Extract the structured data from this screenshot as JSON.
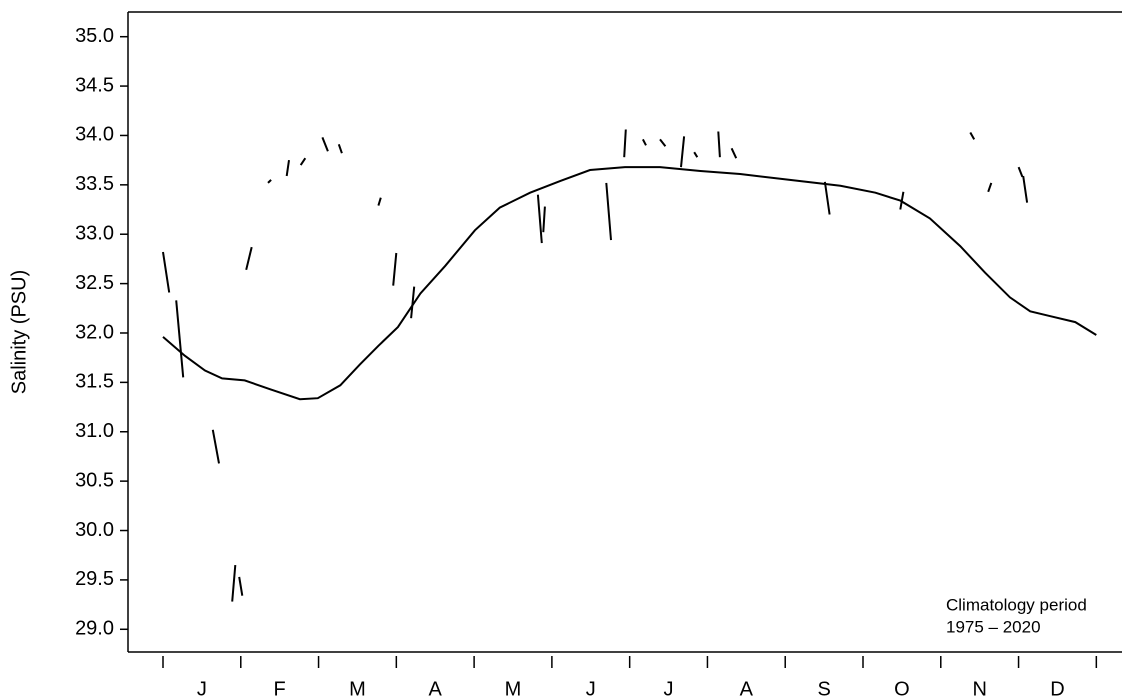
{
  "chart_data": {
    "type": "line",
    "y_label": "Salinity (PSU)",
    "annotations": [
      "Climatology period",
      "1975 – 2020"
    ],
    "categories": [
      "J",
      "F",
      "M",
      "A",
      "M",
      "J",
      "J",
      "A",
      "S",
      "O",
      "N",
      "D"
    ],
    "xlim": [
      -0.45,
      12.33
    ],
    "ylim": [
      28.77,
      35.25
    ],
    "yticks": [
      {
        "value": 29,
        "label": "29.0"
      },
      {
        "value": 29.5,
        "label": "29.5"
      },
      {
        "value": 30,
        "label": "30.0"
      },
      {
        "value": 30.5,
        "label": "30.5"
      },
      {
        "value": 31,
        "label": "31.0"
      },
      {
        "value": 31.5,
        "label": "31.5"
      },
      {
        "value": 32,
        "label": "32.0"
      },
      {
        "value": 32.5,
        "label": "32.5"
      },
      {
        "value": 33,
        "label": "33.0"
      },
      {
        "value": 33.5,
        "label": "33.5"
      },
      {
        "value": 34,
        "label": "34.0"
      },
      {
        "value": 34.5,
        "label": "34.5"
      },
      {
        "value": 35,
        "label": "35.0"
      }
    ],
    "series": [
      {
        "color": "#000000",
        "x": [
          0,
          0.28,
          0.54,
          0.76,
          1.05,
          1.38,
          1.76,
          1.99,
          2.28,
          2.53,
          2.77,
          3.02,
          3.31,
          3.63,
          4.01,
          4.33,
          4.72,
          5.11,
          5.49,
          5.94,
          6.39,
          6.91,
          7.42,
          8.06,
          8.71,
          9.16,
          9.48,
          9.86,
          10.25,
          10.57,
          10.89,
          11.15,
          11.41,
          11.73,
          12.0
        ],
        "values": [
          31.96,
          31.77,
          31.62,
          31.54,
          31.52,
          31.43,
          31.33,
          31.34,
          31.47,
          31.68,
          31.87,
          32.06,
          32.4,
          32.68,
          33.04,
          33.27,
          33.42,
          33.54,
          33.65,
          33.68,
          33.68,
          33.64,
          33.61,
          33.55,
          33.49,
          33.42,
          33.34,
          33.16,
          32.88,
          32.61,
          32.36,
          32.22,
          32.17,
          32.11,
          31.98
        ]
      },
      {
        "color": "#000000",
        "x": [
          0,
          0.08,
          null,
          0.17,
          0.26,
          null,
          0.64,
          0.72,
          null,
          0.93,
          0.89,
          null,
          0.98,
          1.02,
          null,
          1.07,
          1.14,
          null,
          1.35,
          1.39,
          null,
          1.59,
          1.62,
          null,
          1.77,
          1.83,
          null,
          2.05,
          2.12,
          null,
          2.26,
          2.3,
          null,
          2.77,
          2.8,
          null,
          2.96,
          3.0,
          null,
          3.19,
          3.23,
          null,
          4.82,
          4.87,
          null,
          4.89,
          4.91,
          null,
          5.7,
          5.76,
          null,
          5.93,
          5.95,
          null,
          6.17,
          6.21,
          null,
          6.39,
          6.46,
          null,
          6.7,
          6.66,
          null,
          6.83,
          6.87,
          null,
          7.14,
          7.16,
          null,
          7.31,
          7.37,
          null,
          8.51,
          8.57,
          null,
          9.48,
          9.52,
          null,
          10.38,
          10.43,
          null,
          10.61,
          10.65,
          null,
          11.0,
          11.05,
          null,
          11.06,
          11.11
        ],
        "values": [
          32.82,
          32.41,
          null,
          32.33,
          31.55,
          null,
          31.02,
          30.68,
          null,
          29.65,
          29.28,
          null,
          29.53,
          29.34,
          null,
          32.64,
          32.87,
          null,
          33.52,
          33.55,
          null,
          33.59,
          33.75,
          null,
          33.7,
          33.77,
          null,
          33.98,
          33.84,
          null,
          33.91,
          33.82,
          null,
          33.29,
          33.37,
          null,
          32.48,
          32.81,
          null,
          32.15,
          32.47,
          null,
          33.4,
          32.91,
          null,
          33.02,
          33.28,
          null,
          33.52,
          32.94,
          null,
          33.78,
          34.06,
          null,
          33.96,
          33.9,
          null,
          33.96,
          33.89,
          null,
          33.99,
          33.68,
          null,
          33.83,
          33.78,
          null,
          34.04,
          33.78,
          null,
          33.87,
          33.77,
          null,
          33.53,
          33.2,
          null,
          33.25,
          33.43,
          null,
          34.03,
          33.96,
          null,
          33.43,
          33.52,
          null,
          33.68,
          33.58,
          null,
          33.59,
          33.32
        ]
      }
    ]
  }
}
